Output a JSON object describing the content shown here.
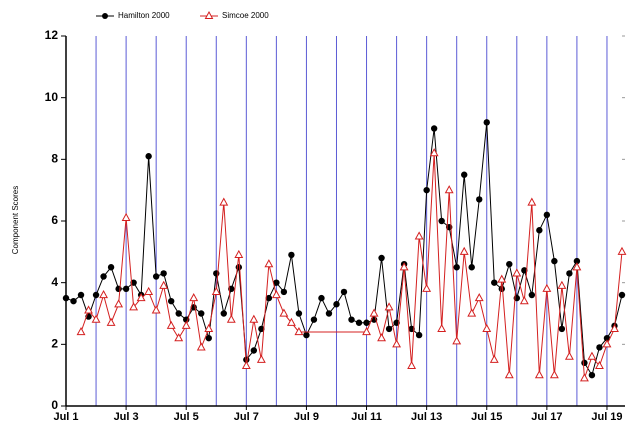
{
  "chart_data": {
    "type": "line",
    "ylabel": "Component Scores",
    "xlim": [
      1,
      19.6
    ],
    "ylim": [
      0,
      12
    ],
    "xticks": [
      {
        "value": 1,
        "label": "Jul 1"
      },
      {
        "value": 3,
        "label": "Jul 3"
      },
      {
        "value": 5,
        "label": "Jul 5"
      },
      {
        "value": 7,
        "label": "Jul 7"
      },
      {
        "value": 9,
        "label": "Jul 9"
      },
      {
        "value": 11,
        "label": "Jul 11"
      },
      {
        "value": 13,
        "label": "Jul 13"
      },
      {
        "value": 15,
        "label": "Jul 15"
      },
      {
        "value": 17,
        "label": "Jul 17"
      },
      {
        "value": 19,
        "label": "Jul 19"
      }
    ],
    "x_minor_ticks": [
      2,
      4,
      6,
      8,
      10,
      12,
      14,
      16,
      18
    ],
    "yticks": [
      0,
      2,
      4,
      6,
      8,
      10,
      12
    ],
    "grid_color": "#5b5bd6",
    "series": [
      {
        "name": "Hamilton 2000",
        "color": "#000000",
        "marker": "circle",
        "x": [
          1,
          1.25,
          1.5,
          1.75,
          2,
          2.25,
          2.5,
          2.75,
          3,
          3.25,
          3.5,
          3.75,
          4,
          4.25,
          4.5,
          4.75,
          5,
          5.25,
          5.5,
          5.75,
          6,
          6.25,
          6.5,
          6.75,
          7,
          7.25,
          7.5,
          7.75,
          8,
          8.25,
          8.5,
          8.75,
          9,
          9.25,
          9.5,
          9.75,
          10,
          10.25,
          10.5,
          10.75,
          11,
          11.25,
          11.5,
          11.75,
          12,
          12.25,
          12.5,
          12.75,
          13,
          13.25,
          13.5,
          13.75,
          14,
          14.25,
          14.5,
          14.75,
          15,
          15.25,
          15.5,
          15.75,
          16,
          16.25,
          16.5,
          16.75,
          17,
          17.25,
          17.5,
          17.75,
          18,
          18.25,
          18.5,
          18.75,
          19,
          19.25,
          19.5
        ],
        "values": [
          3.5,
          3.4,
          3.6,
          2.9,
          3.6,
          4.2,
          4.5,
          3.8,
          3.8,
          4.0,
          3.6,
          8.1,
          4.2,
          4.3,
          3.4,
          3.0,
          2.8,
          3.2,
          3.0,
          2.2,
          4.3,
          3.0,
          3.8,
          4.5,
          1.5,
          1.8,
          2.5,
          3.5,
          4.0,
          3.7,
          4.9,
          3.0,
          2.3,
          2.8,
          3.5,
          3.0,
          3.3,
          3.7,
          2.8,
          2.7,
          2.7,
          2.8,
          4.8,
          2.5,
          2.7,
          4.6,
          2.5,
          2.3,
          7.0,
          9.0,
          6.0,
          5.8,
          4.5,
          7.5,
          4.5,
          6.7,
          9.2,
          4.0,
          3.8,
          4.6,
          3.5,
          4.4,
          3.6,
          5.7,
          6.2,
          4.7,
          2.5,
          4.3,
          4.7,
          1.4,
          1.0,
          1.9,
          2.2,
          2.6,
          3.6
        ]
      },
      {
        "name": "Simcoe 2000",
        "color": "#d42020",
        "marker": "triangle",
        "x": [
          1.5,
          1.75,
          2,
          2.25,
          2.5,
          2.75,
          3,
          3.25,
          3.5,
          3.75,
          4,
          4.25,
          4.5,
          4.75,
          5,
          5.25,
          5.5,
          5.75,
          6,
          6.25,
          6.5,
          6.75,
          7,
          7.25,
          7.5,
          7.75,
          8,
          8.25,
          8.5,
          8.75,
          11,
          11.25,
          11.5,
          11.75,
          12,
          12.25,
          12.5,
          12.75,
          13,
          13.25,
          13.5,
          13.75,
          14,
          14.25,
          14.5,
          14.75,
          15,
          15.25,
          15.5,
          15.75,
          16,
          16.25,
          16.5,
          16.75,
          17,
          17.25,
          17.5,
          17.75,
          18,
          18.25,
          18.5,
          18.75,
          19,
          19.25,
          19.5
        ],
        "values": [
          2.4,
          3.1,
          2.8,
          3.6,
          2.7,
          3.3,
          6.1,
          3.2,
          3.5,
          3.7,
          3.1,
          3.9,
          2.6,
          2.2,
          2.6,
          3.5,
          1.9,
          2.5,
          3.7,
          6.6,
          2.8,
          4.9,
          1.3,
          2.8,
          1.5,
          4.6,
          3.6,
          3.0,
          2.7,
          2.4,
          2.4,
          3.0,
          2.2,
          3.2,
          2.0,
          4.5,
          1.3,
          5.5,
          3.8,
          8.2,
          2.5,
          7.0,
          2.1,
          5.0,
          3.0,
          3.5,
          2.5,
          1.5,
          4.1,
          1.0,
          4.3,
          3.4,
          6.6,
          1.0,
          3.8,
          1.0,
          3.9,
          1.6,
          4.5,
          0.9,
          1.6,
          1.3,
          2.0,
          2.5,
          5.0
        ]
      }
    ]
  }
}
